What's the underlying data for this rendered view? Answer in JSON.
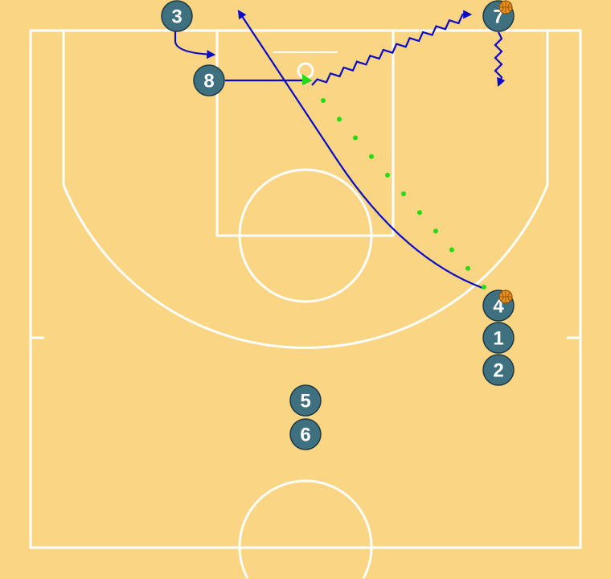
{
  "colors": {
    "court_background": "#f9d584",
    "court_lines": "#ffffff",
    "player_fill": "#3f7080",
    "player_stroke": "#1e3a44",
    "movement_lines": "#0a0ac8",
    "pass_dots": "#22dd11",
    "ball": "#e8901c"
  },
  "players": [
    {
      "label": "3",
      "has_ball": false
    },
    {
      "label": "8",
      "has_ball": false
    },
    {
      "label": "7",
      "has_ball": true
    },
    {
      "label": "4",
      "has_ball": true
    },
    {
      "label": "1",
      "has_ball": false
    },
    {
      "label": "2",
      "has_ball": false
    },
    {
      "label": "5",
      "has_ball": false
    },
    {
      "label": "6",
      "has_ball": false
    }
  ],
  "actions": [
    {
      "type": "cut",
      "from": "3"
    },
    {
      "type": "cut",
      "from": "8"
    },
    {
      "type": "cut",
      "from": "4"
    },
    {
      "type": "dribble",
      "from": "8"
    },
    {
      "type": "dribble",
      "from": "7"
    },
    {
      "type": "pass",
      "from": "4",
      "to": "8"
    }
  ],
  "icons": {
    "ball": "basketball-icon"
  }
}
